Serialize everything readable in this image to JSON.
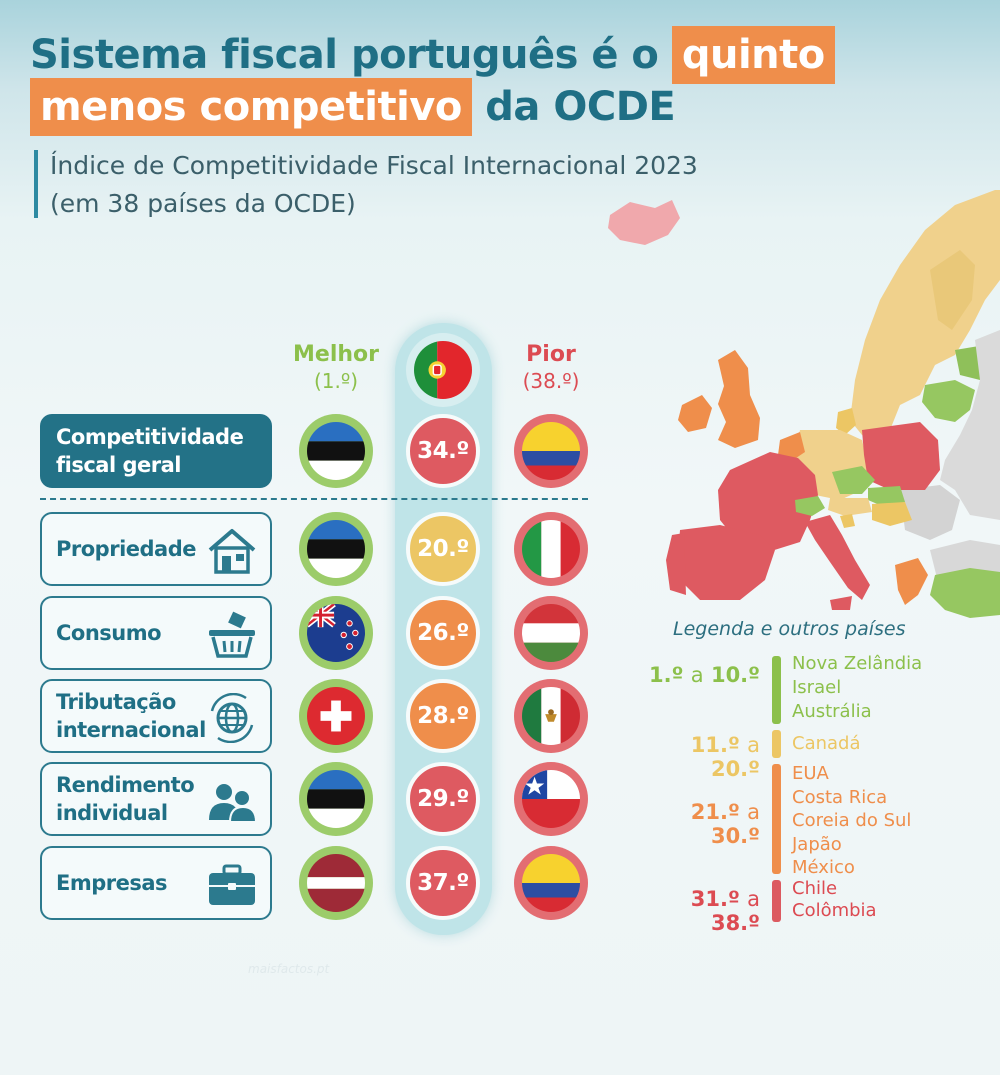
{
  "title": {
    "part1": "Sistema fiscal português é o",
    "highlight1": "quinto",
    "highlight2": "menos competitivo",
    "part2": "da OCDE"
  },
  "subtitle": {
    "line1": "Índice de Competitividade Fiscal Internacional 2023",
    "line2": "(em 38 países da OCDE)"
  },
  "columns": {
    "best_label": "Melhor",
    "best_sub": "(1.º)",
    "worst_label": "Pior",
    "worst_sub": "(38.º)",
    "portugal_flag": "portugal-flag"
  },
  "rows": [
    {
      "label_1": "Competitividade",
      "label_2": "fiscal geral",
      "icon": "none",
      "best_flag": "estonia",
      "rank": "34.º",
      "rank_color": "#de5a61",
      "worst_flag": "colombia"
    },
    {
      "label_1": "Propriedade",
      "label_2": "",
      "icon": "house-icon",
      "best_flag": "estonia",
      "rank": "20.º",
      "rank_color": "#ecc664",
      "worst_flag": "italy"
    },
    {
      "label_1": "Consumo",
      "label_2": "",
      "icon": "shopping-basket-icon",
      "best_flag": "new-zealand",
      "rank": "26.º",
      "rank_color": "#ef8e4b",
      "worst_flag": "hungary"
    },
    {
      "label_1": "Tributação",
      "label_2": "internacional",
      "icon": "globe-icon",
      "best_flag": "switzerland",
      "rank": "28.º",
      "rank_color": "#ef8e4b",
      "worst_flag": "mexico"
    },
    {
      "label_1": "Rendimento",
      "label_2": "individual",
      "icon": "people-icon",
      "best_flag": "estonia",
      "rank": "29.º",
      "rank_color": "#de5a61",
      "worst_flag": "chile"
    },
    {
      "label_1": "Empresas",
      "label_2": "",
      "icon": "briefcase-icon",
      "best_flag": "latvia",
      "rank": "37.º",
      "rank_color": "#de5a61",
      "worst_flag": "colombia"
    }
  ],
  "legend": {
    "title": "Legenda e outros países",
    "groups": [
      {
        "from": "1.º",
        "sep": "a",
        "to": "10.º",
        "color": "#8cc04b",
        "countries": [
          "Nova Zelândia",
          "Israel",
          "Austrália"
        ]
      },
      {
        "from": "11.º",
        "sep": "a",
        "to": "20.º",
        "color": "#ecc664",
        "countries": [
          "Canadá"
        ]
      },
      {
        "from": "21.º",
        "sep": "a",
        "to": "30.º",
        "color": "#ef8e4b",
        "countries": [
          "EUA",
          "Costa Rica",
          "Coreia do Sul",
          "Japão",
          "México"
        ]
      },
      {
        "from": "31.º",
        "sep": "a",
        "to": "38.º",
        "color": "#dc4b52",
        "countries": [
          "Chile",
          "Colômbia"
        ]
      }
    ]
  },
  "colors": {
    "title": "#1f6f85",
    "highlight": "#ef8e4b",
    "green": "#8cc04b",
    "yellow": "#ecc664",
    "orange": "#ef8e4b",
    "red": "#dc4b52",
    "non_oecd": "#d9d9d9"
  },
  "watermark": "maisfactos.pt"
}
